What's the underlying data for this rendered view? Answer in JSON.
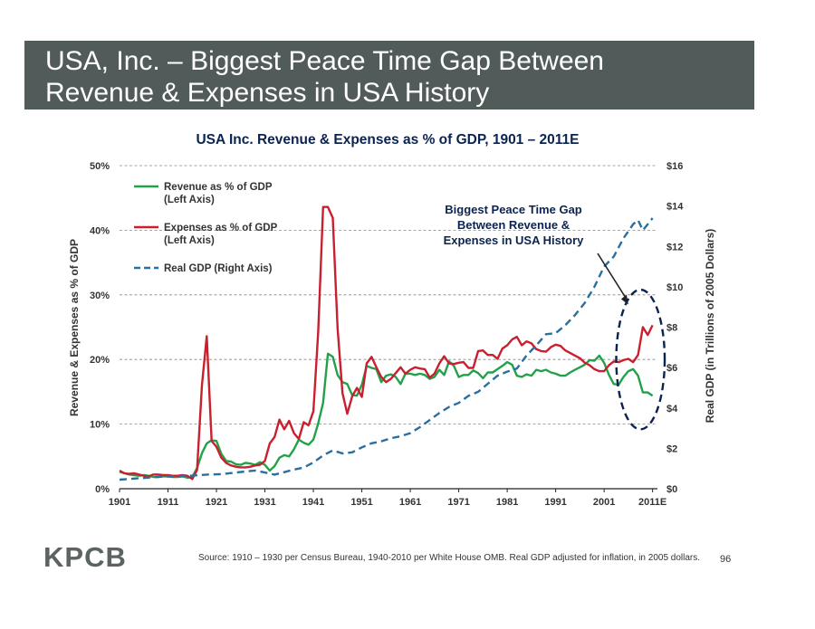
{
  "slide": {
    "title_line1": "USA, Inc. – Biggest Peace Time Gap Between",
    "title_line2": "Revenue & Expenses in USA History",
    "logo": "KPCB",
    "source": "Source: 1910 – 1930 per Census Bureau, 1940-2010 per White House OMB. Real GDP adjusted for inflation, in 2005 dollars.",
    "page_number": "96"
  },
  "colors": {
    "title_bar": "#515b5a",
    "revenue": "#23a14a",
    "expenses": "#c8202e",
    "gdp": "#2b6f9f"
  },
  "chart_data": {
    "type": "line",
    "title": "USA Inc. Revenue & Expenses as % of GDP, 1901 – 2011E",
    "ylabel_left": "Revenue & Expenses as % of GDP",
    "ylabel_right": "Real GDP (in Trillions of 2005 Dollars)",
    "ylim_left": [
      0,
      50
    ],
    "ylim_right": [
      0,
      16
    ],
    "xlim": [
      1901,
      2012
    ],
    "x_ticks": [
      "1901",
      "1911",
      "1921",
      "1931",
      "1941",
      "1951",
      "1961",
      "1971",
      "1981",
      "1991",
      "2001",
      "2011E"
    ],
    "y_ticks_left": [
      "0%",
      "10%",
      "20%",
      "30%",
      "40%",
      "50%"
    ],
    "y_ticks_right": [
      "$0",
      "$2",
      "$4",
      "$6",
      "$8",
      "$10",
      "$12",
      "$14",
      "$16"
    ],
    "grid": "horizontal dashed",
    "legend_position": "top-left",
    "annotation": {
      "lines": [
        "Biggest Peace Time Gap",
        "Between Revenue &",
        "Expenses in USA History"
      ],
      "arrow_to": {
        "x": 2006,
        "y_left": 28.5
      },
      "highlight_ellipse": {
        "x_center": 2008.5,
        "y_left_center": 20,
        "x_radius": 5,
        "y_left_radius": 10.8
      }
    },
    "series": [
      {
        "name": "Revenue as % of GDP",
        "name_line2": "(Left Axis)",
        "axis": "left",
        "points": [
          [
            1901,
            2.6
          ],
          [
            1902,
            2.4
          ],
          [
            1903,
            2.2
          ],
          [
            1904,
            2.1
          ],
          [
            1905,
            2.0
          ],
          [
            1906,
            2.1
          ],
          [
            1907,
            2.0
          ],
          [
            1908,
            1.8
          ],
          [
            1909,
            1.8
          ],
          [
            1910,
            1.9
          ],
          [
            1911,
            1.9
          ],
          [
            1912,
            1.8
          ],
          [
            1913,
            1.8
          ],
          [
            1914,
            1.9
          ],
          [
            1915,
            1.7
          ],
          [
            1916,
            1.8
          ],
          [
            1917,
            3.2
          ],
          [
            1918,
            5.5
          ],
          [
            1919,
            7.0
          ],
          [
            1920,
            7.5
          ],
          [
            1921,
            7.4
          ],
          [
            1922,
            5.4
          ],
          [
            1923,
            4.3
          ],
          [
            1924,
            4.2
          ],
          [
            1925,
            3.8
          ],
          [
            1926,
            3.7
          ],
          [
            1927,
            4.0
          ],
          [
            1928,
            3.9
          ],
          [
            1929,
            3.7
          ],
          [
            1930,
            4.1
          ],
          [
            1931,
            3.7
          ],
          [
            1932,
            2.8
          ],
          [
            1933,
            3.5
          ],
          [
            1934,
            4.8
          ],
          [
            1935,
            5.2
          ],
          [
            1936,
            5.0
          ],
          [
            1937,
            6.1
          ],
          [
            1938,
            7.6
          ],
          [
            1939,
            7.1
          ],
          [
            1940,
            6.8
          ],
          [
            1941,
            7.6
          ],
          [
            1942,
            10.1
          ],
          [
            1943,
            13.3
          ],
          [
            1944,
            20.9
          ],
          [
            1945,
            20.4
          ],
          [
            1946,
            17.6
          ],
          [
            1947,
            16.5
          ],
          [
            1948,
            16.2
          ],
          [
            1949,
            14.5
          ],
          [
            1950,
            14.4
          ],
          [
            1951,
            16.1
          ],
          [
            1952,
            19.0
          ],
          [
            1953,
            18.7
          ],
          [
            1954,
            18.5
          ],
          [
            1955,
            16.5
          ],
          [
            1956,
            17.5
          ],
          [
            1957,
            17.7
          ],
          [
            1958,
            17.3
          ],
          [
            1959,
            16.2
          ],
          [
            1960,
            17.8
          ],
          [
            1961,
            17.8
          ],
          [
            1962,
            17.6
          ],
          [
            1963,
            17.8
          ],
          [
            1964,
            17.6
          ],
          [
            1965,
            17.0
          ],
          [
            1966,
            17.3
          ],
          [
            1967,
            18.4
          ],
          [
            1968,
            17.6
          ],
          [
            1969,
            19.7
          ],
          [
            1970,
            19.0
          ],
          [
            1971,
            17.3
          ],
          [
            1972,
            17.6
          ],
          [
            1973,
            17.6
          ],
          [
            1974,
            18.3
          ],
          [
            1975,
            17.9
          ],
          [
            1976,
            17.1
          ],
          [
            1977,
            18.0
          ],
          [
            1978,
            18.0
          ],
          [
            1979,
            18.5
          ],
          [
            1980,
            19.0
          ],
          [
            1981,
            19.6
          ],
          [
            1982,
            19.2
          ],
          [
            1983,
            17.5
          ],
          [
            1984,
            17.3
          ],
          [
            1985,
            17.7
          ],
          [
            1986,
            17.5
          ],
          [
            1987,
            18.4
          ],
          [
            1988,
            18.2
          ],
          [
            1989,
            18.4
          ],
          [
            1990,
            18.0
          ],
          [
            1991,
            17.8
          ],
          [
            1992,
            17.5
          ],
          [
            1993,
            17.5
          ],
          [
            1994,
            18.0
          ],
          [
            1995,
            18.4
          ],
          [
            1996,
            18.8
          ],
          [
            1997,
            19.2
          ],
          [
            1998,
            19.9
          ],
          [
            1999,
            19.8
          ],
          [
            2000,
            20.6
          ],
          [
            2001,
            19.5
          ],
          [
            2002,
            17.6
          ],
          [
            2003,
            16.2
          ],
          [
            2004,
            16.1
          ],
          [
            2005,
            17.3
          ],
          [
            2006,
            18.2
          ],
          [
            2007,
            18.5
          ],
          [
            2008,
            17.5
          ],
          [
            2009,
            14.9
          ],
          [
            2010,
            14.9
          ],
          [
            2011,
            14.4
          ]
        ]
      },
      {
        "name": "Expenses as % of GDP",
        "name_line2": "(Left Axis)",
        "axis": "left",
        "points": [
          [
            1901,
            2.8
          ],
          [
            1902,
            2.4
          ],
          [
            1903,
            2.3
          ],
          [
            1904,
            2.4
          ],
          [
            1905,
            2.2
          ],
          [
            1906,
            2.0
          ],
          [
            1907,
            1.9
          ],
          [
            1908,
            2.2
          ],
          [
            1909,
            2.2
          ],
          [
            1910,
            2.1
          ],
          [
            1911,
            2.1
          ],
          [
            1912,
            2.0
          ],
          [
            1913,
            2.0
          ],
          [
            1914,
            2.1
          ],
          [
            1915,
            2.0
          ],
          [
            1916,
            1.5
          ],
          [
            1917,
            2.9
          ],
          [
            1918,
            16.0
          ],
          [
            1919,
            23.6
          ],
          [
            1920,
            7.4
          ],
          [
            1921,
            6.5
          ],
          [
            1922,
            4.8
          ],
          [
            1923,
            4.0
          ],
          [
            1924,
            3.6
          ],
          [
            1925,
            3.4
          ],
          [
            1926,
            3.3
          ],
          [
            1927,
            3.3
          ],
          [
            1928,
            3.4
          ],
          [
            1929,
            3.6
          ],
          [
            1930,
            3.7
          ],
          [
            1931,
            4.3
          ],
          [
            1932,
            7.0
          ],
          [
            1933,
            8.0
          ],
          [
            1934,
            10.7
          ],
          [
            1935,
            9.2
          ],
          [
            1936,
            10.5
          ],
          [
            1937,
            8.6
          ],
          [
            1938,
            7.7
          ],
          [
            1939,
            10.3
          ],
          [
            1940,
            9.8
          ],
          [
            1941,
            12.0
          ],
          [
            1942,
            24.3
          ],
          [
            1943,
            43.6
          ],
          [
            1944,
            43.6
          ],
          [
            1945,
            41.9
          ],
          [
            1946,
            24.8
          ],
          [
            1947,
            14.8
          ],
          [
            1948,
            11.6
          ],
          [
            1949,
            14.3
          ],
          [
            1950,
            15.6
          ],
          [
            1951,
            14.2
          ],
          [
            1952,
            19.4
          ],
          [
            1953,
            20.4
          ],
          [
            1954,
            18.8
          ],
          [
            1955,
            17.3
          ],
          [
            1956,
            16.5
          ],
          [
            1957,
            17.0
          ],
          [
            1958,
            17.9
          ],
          [
            1959,
            18.8
          ],
          [
            1960,
            17.8
          ],
          [
            1961,
            18.4
          ],
          [
            1962,
            18.8
          ],
          [
            1963,
            18.6
          ],
          [
            1964,
            18.5
          ],
          [
            1965,
            17.2
          ],
          [
            1966,
            17.8
          ],
          [
            1967,
            19.4
          ],
          [
            1968,
            20.5
          ],
          [
            1969,
            19.4
          ],
          [
            1970,
            19.3
          ],
          [
            1971,
            19.5
          ],
          [
            1972,
            19.6
          ],
          [
            1973,
            18.7
          ],
          [
            1974,
            18.7
          ],
          [
            1975,
            21.3
          ],
          [
            1976,
            21.4
          ],
          [
            1977,
            20.7
          ],
          [
            1978,
            20.7
          ],
          [
            1979,
            20.1
          ],
          [
            1980,
            21.7
          ],
          [
            1981,
            22.2
          ],
          [
            1982,
            23.1
          ],
          [
            1983,
            23.5
          ],
          [
            1984,
            22.2
          ],
          [
            1985,
            22.8
          ],
          [
            1986,
            22.5
          ],
          [
            1987,
            21.6
          ],
          [
            1988,
            21.3
          ],
          [
            1989,
            21.2
          ],
          [
            1990,
            21.9
          ],
          [
            1991,
            22.3
          ],
          [
            1992,
            22.1
          ],
          [
            1993,
            21.4
          ],
          [
            1994,
            21.0
          ],
          [
            1995,
            20.6
          ],
          [
            1996,
            20.2
          ],
          [
            1997,
            19.5
          ],
          [
            1998,
            19.1
          ],
          [
            1999,
            18.5
          ],
          [
            2000,
            18.2
          ],
          [
            2001,
            18.2
          ],
          [
            2002,
            19.1
          ],
          [
            2003,
            19.7
          ],
          [
            2004,
            19.6
          ],
          [
            2005,
            19.9
          ],
          [
            2006,
            20.1
          ],
          [
            2007,
            19.6
          ],
          [
            2008,
            20.7
          ],
          [
            2009,
            25.0
          ],
          [
            2010,
            23.8
          ],
          [
            2011,
            25.3
          ]
        ]
      },
      {
        "name": "Real GDP (Right Axis)",
        "axis": "right",
        "points": [
          [
            1901,
            0.45
          ],
          [
            1904,
            0.5
          ],
          [
            1907,
            0.55
          ],
          [
            1910,
            0.6
          ],
          [
            1913,
            0.62
          ],
          [
            1916,
            0.65
          ],
          [
            1919,
            0.7
          ],
          [
            1922,
            0.72
          ],
          [
            1925,
            0.8
          ],
          [
            1928,
            0.88
          ],
          [
            1929,
            0.9
          ],
          [
            1931,
            0.8
          ],
          [
            1933,
            0.7
          ],
          [
            1935,
            0.82
          ],
          [
            1937,
            0.95
          ],
          [
            1939,
            1.05
          ],
          [
            1941,
            1.3
          ],
          [
            1943,
            1.65
          ],
          [
            1945,
            1.9
          ],
          [
            1947,
            1.75
          ],
          [
            1949,
            1.8
          ],
          [
            1951,
            2.05
          ],
          [
            1953,
            2.25
          ],
          [
            1955,
            2.35
          ],
          [
            1957,
            2.5
          ],
          [
            1959,
            2.6
          ],
          [
            1961,
            2.75
          ],
          [
            1963,
            3.05
          ],
          [
            1965,
            3.4
          ],
          [
            1967,
            3.75
          ],
          [
            1969,
            4.05
          ],
          [
            1971,
            4.25
          ],
          [
            1973,
            4.6
          ],
          [
            1975,
            4.8
          ],
          [
            1977,
            5.2
          ],
          [
            1979,
            5.6
          ],
          [
            1981,
            5.8
          ],
          [
            1983,
            5.95
          ],
          [
            1985,
            6.6
          ],
          [
            1987,
            7.1
          ],
          [
            1989,
            7.65
          ],
          [
            1991,
            7.7
          ],
          [
            1993,
            8.1
          ],
          [
            1995,
            8.6
          ],
          [
            1997,
            9.2
          ],
          [
            1999,
            10.0
          ],
          [
            2001,
            11.0
          ],
          [
            2003,
            11.5
          ],
          [
            2005,
            12.4
          ],
          [
            2007,
            13.1
          ],
          [
            2008,
            13.3
          ],
          [
            2009,
            12.8
          ],
          [
            2010,
            13.1
          ],
          [
            2011,
            13.4
          ]
        ]
      }
    ]
  }
}
